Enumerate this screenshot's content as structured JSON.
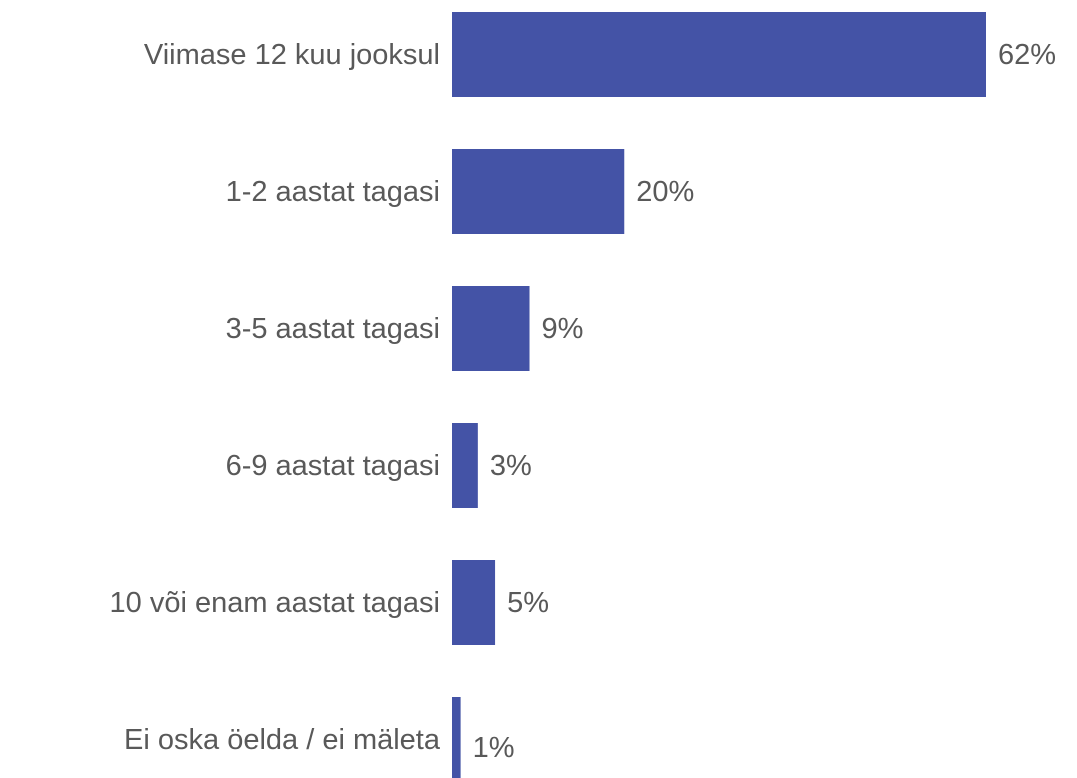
{
  "chart_data": {
    "type": "barh",
    "categories": [
      "Viimase 12 kuu jooksul",
      "1-2 aastat tagasi",
      "3-5 aastat tagasi",
      "6-9 aastat tagasi",
      "10 või enam aastat tagasi",
      "Ei oska öelda / ei mäleta"
    ],
    "values": [
      62,
      20,
      9,
      3,
      5,
      1
    ],
    "value_labels": [
      "62%",
      "20%",
      "9%",
      "3%",
      "5%",
      "1%"
    ],
    "color": "#4453a6"
  }
}
